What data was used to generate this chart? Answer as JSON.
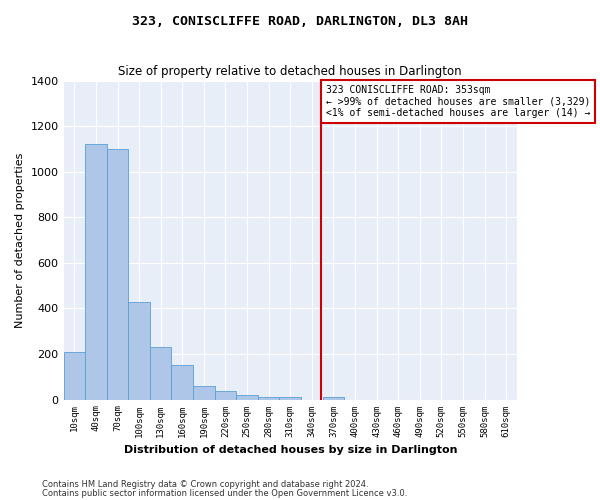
{
  "title": "323, CONISCLIFFE ROAD, DARLINGTON, DL3 8AH",
  "subtitle": "Size of property relative to detached houses in Darlington",
  "xlabel": "Distribution of detached houses by size in Darlington",
  "ylabel": "Number of detached properties",
  "bar_color": "#aec6e8",
  "bar_edge_color": "#5a9fd4",
  "background_color": "#e8eef8",
  "grid_color": "#ffffff",
  "categories": [
    "10sqm",
    "40sqm",
    "70sqm",
    "100sqm",
    "130sqm",
    "160sqm",
    "190sqm",
    "220sqm",
    "250sqm",
    "280sqm",
    "310sqm",
    "340sqm",
    "370sqm",
    "400sqm",
    "430sqm",
    "460sqm",
    "490sqm",
    "520sqm",
    "550sqm",
    "580sqm",
    "610sqm"
  ],
  "bar_values": [
    210,
    1120,
    1100,
    430,
    230,
    150,
    58,
    37,
    22,
    12,
    12,
    0,
    12,
    0,
    0,
    0,
    0,
    0,
    0,
    0,
    0
  ],
  "ylim": [
    0,
    1400
  ],
  "yticks": [
    0,
    200,
    400,
    600,
    800,
    1000,
    1200,
    1400
  ],
  "vline_color": "#cc0000",
  "annotation_text": "323 CONISCLIFFE ROAD: 353sqm\n← >99% of detached houses are smaller (3,329)\n<1% of semi-detached houses are larger (14) →",
  "annotation_box_color": "#cc0000",
  "footnote1": "Contains HM Land Registry data © Crown copyright and database right 2024.",
  "footnote2": "Contains public sector information licensed under the Open Government Licence v3.0."
}
